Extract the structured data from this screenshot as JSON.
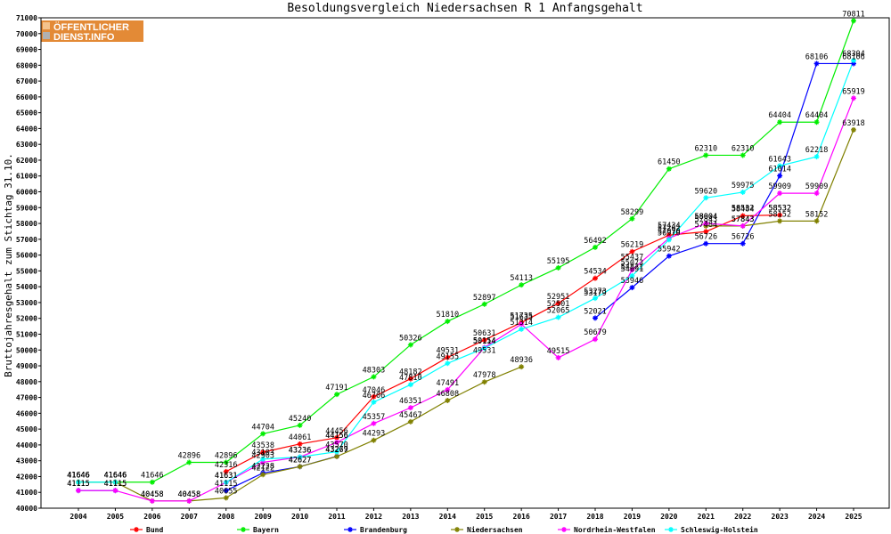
{
  "logo": {
    "line1": "ÖFFENTLICHER",
    "line2": "DIENST.INFO"
  },
  "chart_data": {
    "type": "line",
    "title": "Besoldungsvergleich Niedersachsen R 1 Anfangsgehalt",
    "ylabel": "Bruttojahresgehalt zum Stichtag 31.10.",
    "xlabel": "",
    "x": [
      "2004",
      "2005",
      "2006",
      "2007",
      "2008",
      "2009",
      "2010",
      "2011",
      "2012",
      "2013",
      "2014",
      "2015",
      "2016",
      "2017",
      "2018",
      "2019",
      "2020",
      "2021",
      "2022",
      "2023",
      "2024",
      "2025"
    ],
    "ylim": [
      40000,
      71000
    ],
    "ytick_step": 1000,
    "grid": false,
    "legend_position": "bottom",
    "series": [
      {
        "name": "Bund",
        "color": "#ff0000",
        "values": [
          41646,
          41646,
          null,
          null,
          42316,
          43538,
          44061,
          44456,
          47046,
          48182,
          49531,
          50631,
          51735,
          52951,
          54534,
          56219,
          57262,
          57484,
          58484,
          58532,
          null,
          null
        ]
      },
      {
        "name": "Bayern",
        "color": "#00ee00",
        "values": [
          41646,
          41646,
          41646,
          42896,
          42896,
          44704,
          45240,
          47191,
          48303,
          50326,
          51810,
          52897,
          54113,
          55195,
          56492,
          58299,
          61450,
          62310,
          62310,
          64404,
          64404,
          70811
        ]
      },
      {
        "name": "Brandenburg",
        "color": "#0000ff",
        "values": [
          41115,
          41115,
          null,
          null,
          41115,
          42228,
          42627,
          43279,
          null,
          null,
          null,
          null,
          null,
          null,
          52021,
          53946,
          55942,
          56726,
          56726,
          61014,
          68106,
          68106
        ]
      },
      {
        "name": "Niedersachsen",
        "color": "#808000",
        "values": [
          41646,
          41646,
          40458,
          40458,
          40655,
          42122,
          42627,
          43267,
          44293,
          45467,
          46808,
          47978,
          48936,
          null,
          null,
          null,
          null,
          57843,
          57843,
          58152,
          58152,
          63918
        ]
      },
      {
        "name": "Nordrhein-Westfalen",
        "color": "#ff00ff",
        "values": [
          41115,
          41115,
          40458,
          40458,
          41631,
          42903,
          43236,
          44156,
          45357,
          46351,
          47491,
          50154,
          51635,
          49515,
          50679,
          55073,
          57070,
          58004,
          57843,
          59909,
          59909,
          65919
        ]
      },
      {
        "name": "Schleswig-Holstein",
        "color": "#00ffff",
        "values": [
          41646,
          41646,
          null,
          null,
          41631,
          43103,
          43236,
          43570,
          46706,
          47810,
          49155,
          50114,
          51314,
          52065,
          53273,
          54691,
          56970,
          59620,
          59975,
          61643,
          62218,
          68304
        ]
      }
    ],
    "extra_labels": [
      {
        "x": "2017",
        "value": 52501
      },
      {
        "x": "2018",
        "value": 53179
      },
      {
        "x": "2019",
        "value": 55437
      },
      {
        "x": "2019",
        "value": 54821
      },
      {
        "x": "2020",
        "value": 57434
      },
      {
        "x": "2021",
        "value": 58004
      },
      {
        "x": "2022",
        "value": 58532
      },
      {
        "x": "2023",
        "value": 58532
      },
      {
        "x": "2011",
        "value": 44156
      },
      {
        "x": "2015",
        "value": 49531
      }
    ]
  }
}
